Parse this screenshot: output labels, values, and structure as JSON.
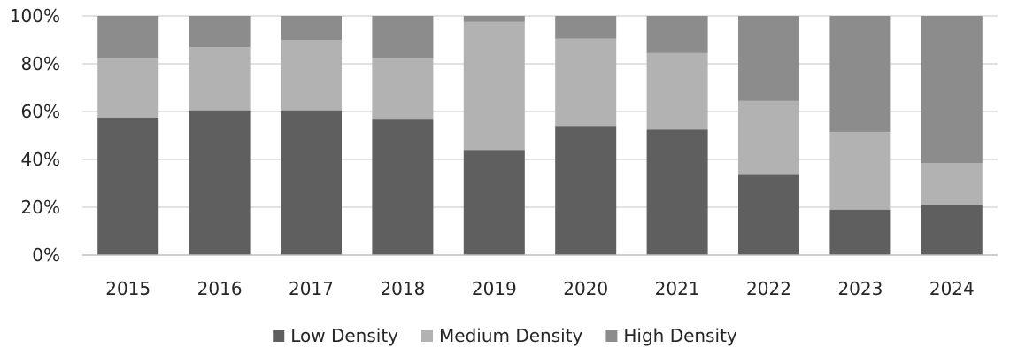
{
  "chart_data": {
    "type": "bar",
    "stacked": true,
    "title": "",
    "xlabel": "",
    "ylabel": "",
    "categories": [
      "2015",
      "2016",
      "2017",
      "2018",
      "2019",
      "2020",
      "2021",
      "2022",
      "2023",
      "2024"
    ],
    "series": [
      {
        "name": "Low Density",
        "color": "#5f5f5f",
        "values": [
          57.5,
          60.5,
          60.5,
          57,
          44,
          54,
          52.5,
          33.5,
          19,
          21
        ]
      },
      {
        "name": "Medium Density",
        "color": "#b2b2b2",
        "values": [
          25,
          26.5,
          29.5,
          25.5,
          53.5,
          36.5,
          32,
          31,
          32.5,
          17.5
        ]
      },
      {
        "name": "High Density",
        "color": "#8c8c8c",
        "values": [
          17.5,
          13,
          10,
          17.5,
          2.5,
          9.5,
          15.5,
          35.5,
          48.5,
          61.5
        ]
      }
    ],
    "ylim": [
      0,
      100
    ],
    "yticks": [
      "0%",
      "20%",
      "40%",
      "60%",
      "80%",
      "100%"
    ],
    "grid": true,
    "legend_position": "bottom"
  }
}
